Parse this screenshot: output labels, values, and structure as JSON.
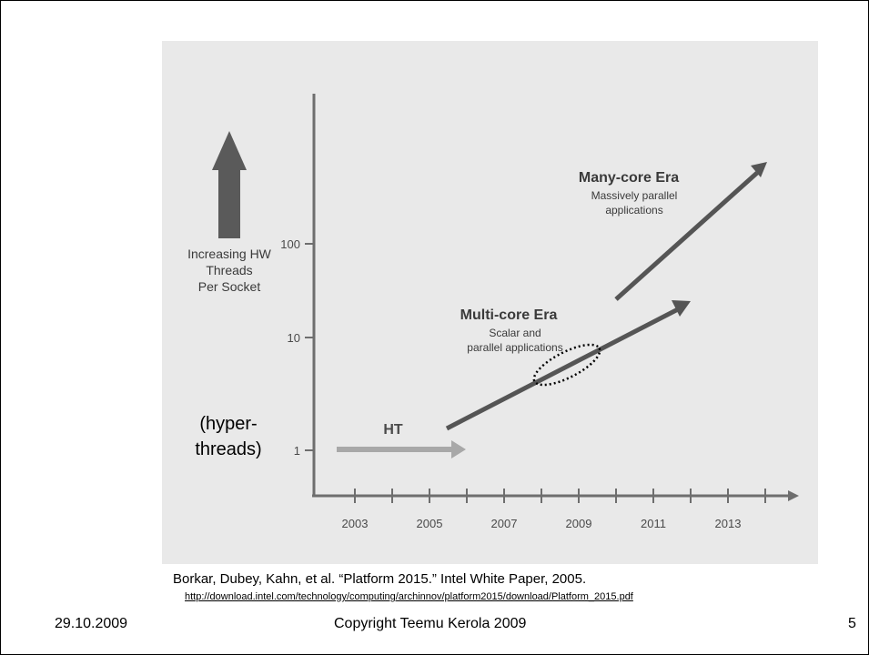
{
  "diagram": {
    "y_axis": {
      "label_lines": [
        "Increasing HW",
        "Threads",
        "Per Socket"
      ],
      "ticks": [
        "1",
        "10",
        "100"
      ],
      "annotation_lines": [
        "(hyper-",
        "threads)"
      ]
    },
    "x_axis": {
      "ticks": [
        "2003",
        "2005",
        "2007",
        "2009",
        "2011",
        "2013"
      ]
    },
    "ht_label": "HT",
    "multicore": {
      "title": "Multi-core Era",
      "desc_lines": [
        "Scalar and",
        "parallel applications"
      ]
    },
    "manycore": {
      "title": "Many-core Era",
      "desc_lines": [
        "Massively parallel",
        "applications"
      ]
    },
    "colors": {
      "panel": "#e9e9e9",
      "axis": "#6e6e6e",
      "ht_arrow": "#a8a8a8",
      "era_arrow": "#555555",
      "big_arrow": "#5a5a5a"
    }
  },
  "citation": {
    "text": "Borkar, Dubey, Kahn, et al. “Platform 2015.” Intel White Paper, 2005.",
    "link": "http://download.intel.com/technology/computing/archinnov/platform2015/download/Platform_2015.pdf"
  },
  "footer": {
    "date": "29.10.2009",
    "copyright": "Copyright Teemu Kerola 2009",
    "page": "5"
  }
}
